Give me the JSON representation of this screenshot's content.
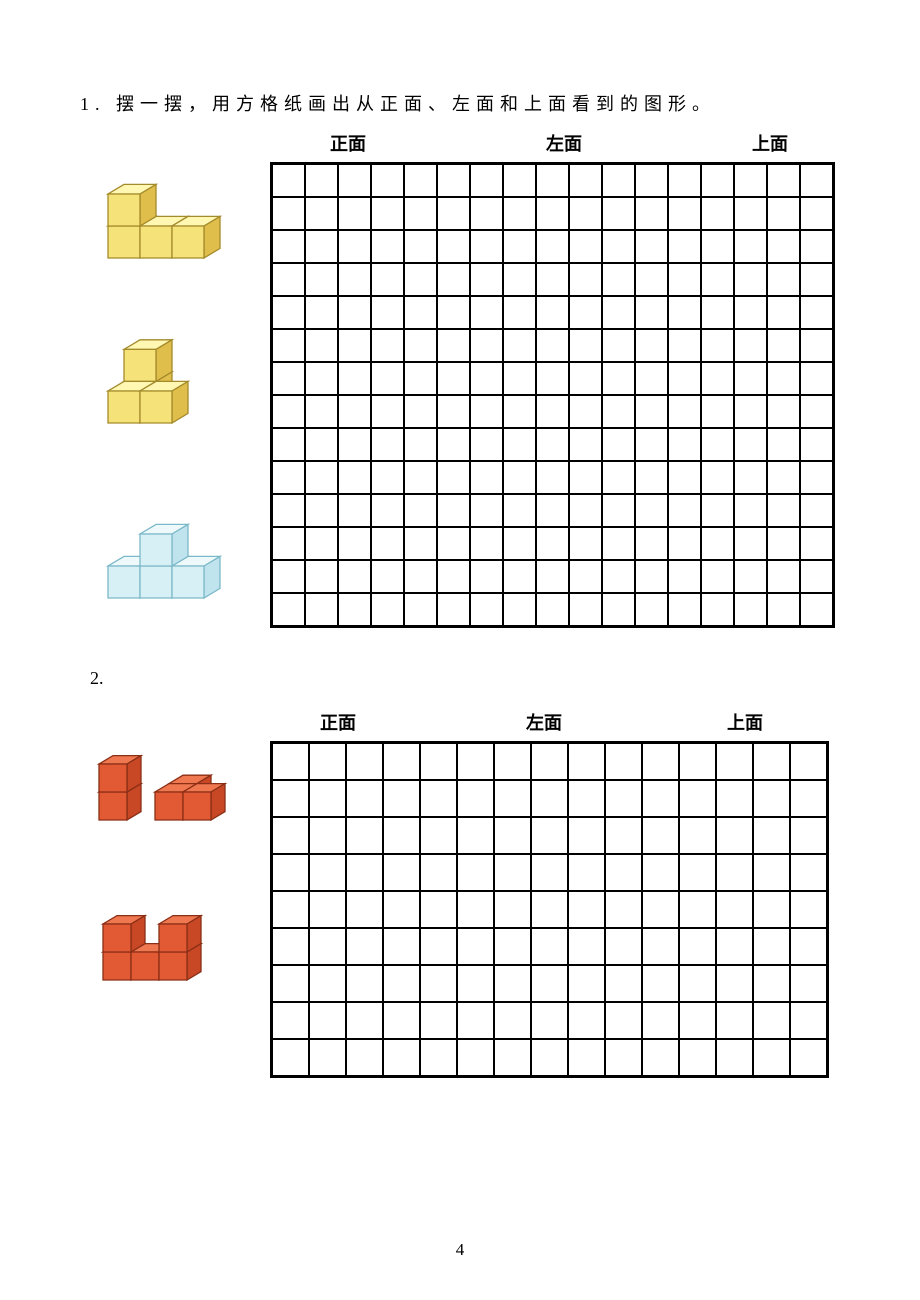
{
  "question1": {
    "number": "1.",
    "text": "摆一摆，用方格纸画出从正面、左面和上面看到的图形。",
    "headers": [
      "正面",
      "左面",
      "上面"
    ],
    "grid": {
      "cols": 17,
      "rows": 14,
      "cell_size": 33
    },
    "figures": [
      {
        "type": "cube_shape",
        "cube_size": 32,
        "colors": {
          "top": "#fff7b2",
          "front": "#f5e37a",
          "side": "#e0be4c",
          "stroke": "#a38a2b"
        },
        "cubes": [
          {
            "gx": 0,
            "gy": 1,
            "gz": 0
          },
          {
            "gx": 0,
            "gy": 0,
            "gz": 0
          },
          {
            "gx": 1,
            "gy": 0,
            "gz": 0
          },
          {
            "gx": 2,
            "gy": 0,
            "gz": 0
          }
        ]
      },
      {
        "type": "cube_shape",
        "cube_size": 32,
        "colors": {
          "top": "#fff7b2",
          "front": "#f5e37a",
          "side": "#e0be4c",
          "stroke": "#a38a2b"
        },
        "cubes": [
          {
            "gx": 0,
            "gy": 0,
            "gz": 1
          },
          {
            "gx": 0,
            "gy": 1,
            "gz": 1
          },
          {
            "gx": 0,
            "gy": 0,
            "gz": 0
          },
          {
            "gx": 1,
            "gy": 0,
            "gz": 0
          }
        ]
      },
      {
        "type": "cube_shape",
        "cube_size": 32,
        "colors": {
          "top": "#eef9fb",
          "front": "#d7f0f6",
          "side": "#bfe4ee",
          "stroke": "#7bb9c8"
        },
        "cubes": [
          {
            "gx": 1,
            "gy": 1,
            "gz": 0
          },
          {
            "gx": 0,
            "gy": 0,
            "gz": 0
          },
          {
            "gx": 1,
            "gy": 0,
            "gz": 0
          },
          {
            "gx": 2,
            "gy": 0,
            "gz": 0
          }
        ]
      }
    ]
  },
  "question2": {
    "number": "2.",
    "headers": [
      "正面",
      "左面",
      "上面"
    ],
    "grid": {
      "cols": 15,
      "rows": 9,
      "cell_size": 37
    },
    "figures": [
      {
        "type": "cube_group",
        "cube_size": 28,
        "colors": {
          "top": "#f07850",
          "front": "#e25a34",
          "side": "#c84826",
          "stroke": "#8a2e15"
        },
        "shapes": [
          {
            "ox": 0,
            "oy": 0,
            "cubes": [
              {
                "gx": 0,
                "gy": 0,
                "gz": 0
              },
              {
                "gx": 0,
                "gy": 1,
                "gz": 0
              }
            ]
          },
          {
            "ox": 56,
            "oy": 0,
            "cubes": [
              {
                "gx": 0,
                "gy": 0,
                "gz": 1
              },
              {
                "gx": 0,
                "gy": 0,
                "gz": 0
              },
              {
                "gx": 1,
                "gy": 0,
                "gz": 0
              }
            ]
          }
        ]
      },
      {
        "type": "cube_shape",
        "cube_size": 28,
        "colors": {
          "top": "#f07850",
          "front": "#e25a34",
          "side": "#c84826",
          "stroke": "#8a2e15"
        },
        "cubes": [
          {
            "gx": 0,
            "gy": 1,
            "gz": 0
          },
          {
            "gx": 0,
            "gy": 0,
            "gz": 0
          },
          {
            "gx": 1,
            "gy": 0,
            "gz": 0
          },
          {
            "gx": 2,
            "gy": 0,
            "gz": 0
          },
          {
            "gx": 2,
            "gy": 1,
            "gz": 0
          }
        ]
      }
    ]
  },
  "page_number": "4",
  "layout": {
    "header_gaps": [
      60,
      180,
      170
    ],
    "header_gaps2": [
      50,
      170,
      165
    ],
    "fig_spacing1": [
      30,
      50,
      60
    ],
    "fig_spacing2": [
      25,
      55
    ]
  }
}
